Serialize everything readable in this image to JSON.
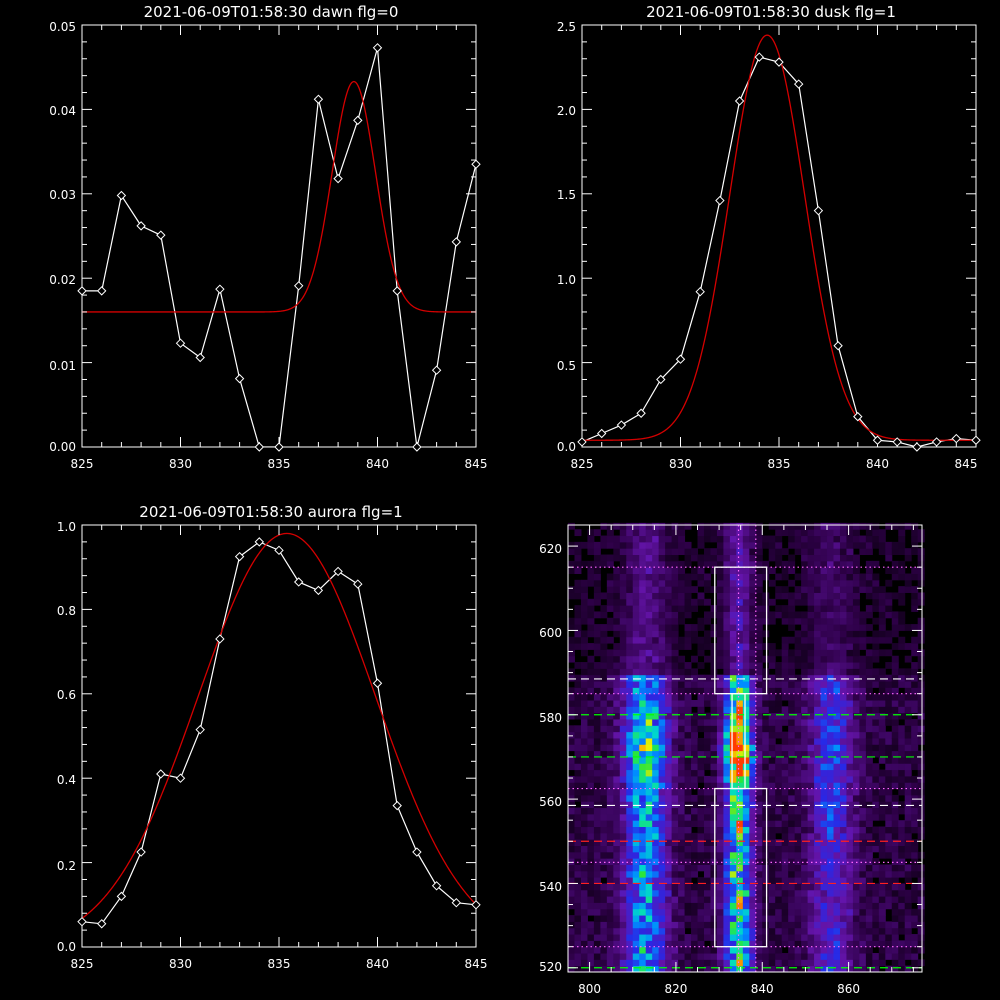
{
  "chart_data": [
    {
      "type": "line",
      "title": "2021-06-09T01:58:30 dawn flg=0",
      "xlim": [
        825,
        845
      ],
      "ylim": [
        0,
        0.05
      ],
      "x_ticks": [
        "825",
        "830",
        "835",
        "840",
        "845"
      ],
      "y_ticks": [
        "0.00",
        "0.01",
        "0.02",
        "0.03",
        "0.04",
        "0.05"
      ],
      "series": [
        {
          "style": "data",
          "color": "#ffffff",
          "x": [
            825,
            826,
            827,
            828,
            829,
            830,
            831,
            832,
            833,
            834,
            835,
            836,
            837,
            838,
            839,
            840,
            841,
            842,
            843,
            844,
            845
          ],
          "y": [
            0.0185,
            0.0185,
            0.0298,
            0.0262,
            0.0251,
            0.0123,
            0.0106,
            0.0187,
            0.0081,
            0.0,
            0.0,
            0.0191,
            0.0412,
            0.0318,
            0.0387,
            0.0473,
            0.0185,
            0.0,
            0.0091,
            0.0243,
            0.0335
          ]
        },
        {
          "style": "fit",
          "color": "#d40000",
          "model": "gaussian",
          "baseline": 0.016,
          "amplitude": 0.0273,
          "center": 838.8,
          "sigma": 1.1
        }
      ]
    },
    {
      "type": "line",
      "title": "2021-06-09T01:58:30 dusk flg=1",
      "xlim": [
        825,
        845
      ],
      "ylim": [
        0,
        2.5
      ],
      "x_ticks": [
        "825",
        "830",
        "835",
        "840",
        "845"
      ],
      "y_ticks": [
        "0.0",
        "0.5",
        "1.0",
        "1.5",
        "2.0",
        "2.5"
      ],
      "series": [
        {
          "style": "data",
          "color": "#ffffff",
          "x": [
            825,
            826,
            827,
            828,
            829,
            830,
            831,
            832,
            833,
            834,
            835,
            836,
            837,
            838,
            839,
            840,
            841,
            842,
            843,
            844,
            845
          ],
          "y": [
            0.03,
            0.08,
            0.13,
            0.2,
            0.4,
            0.52,
            0.92,
            1.46,
            2.05,
            2.31,
            2.28,
            2.15,
            1.4,
            0.6,
            0.18,
            0.04,
            0.03,
            0.0,
            0.03,
            0.05,
            0.04
          ]
        },
        {
          "style": "fit",
          "color": "#d40000",
          "model": "gaussian",
          "baseline": 0.04,
          "amplitude": 2.4,
          "center": 834.4,
          "sigma": 1.9
        }
      ]
    },
    {
      "type": "line",
      "title": "2021-06-09T01:58:30 aurora flg=1",
      "xlim": [
        825,
        845
      ],
      "ylim": [
        0,
        1.0
      ],
      "x_ticks": [
        "825",
        "830",
        "835",
        "840",
        "845"
      ],
      "y_ticks": [
        "0.0",
        "0.2",
        "0.4",
        "0.6",
        "0.8",
        "1.0"
      ],
      "series": [
        {
          "style": "data",
          "color": "#ffffff",
          "x": [
            825,
            826,
            827,
            828,
            829,
            830,
            831,
            832,
            833,
            834,
            835,
            836,
            837,
            838,
            839,
            840,
            841,
            842,
            843,
            844,
            845
          ],
          "y": [
            0.06,
            0.055,
            0.12,
            0.225,
            0.41,
            0.4,
            0.515,
            0.73,
            0.925,
            0.96,
            0.94,
            0.865,
            0.845,
            0.89,
            0.86,
            0.625,
            0.335,
            0.225,
            0.145,
            0.105,
            0.1
          ]
        },
        {
          "style": "fit",
          "color": "#d40000",
          "model": "gaussian",
          "baseline": 0.0,
          "amplitude": 0.98,
          "center": 835.4,
          "sigma": 4.5
        }
      ]
    },
    {
      "type": "heatmap",
      "title": "",
      "xlim": [
        795,
        877
      ],
      "ylim": [
        519,
        625
      ],
      "x_ticks": [
        "800",
        "820",
        "840",
        "860"
      ],
      "y_ticks": [
        "520",
        "540",
        "560",
        "580",
        "600",
        "620"
      ],
      "emission_columns": [
        {
          "x": 813,
          "width": 3.5,
          "strength": 0.55,
          "peak_y": 572,
          "peak_spread": 9,
          "extra": 0.45
        },
        {
          "x": 834.5,
          "width": 2.2,
          "strength": 0.75,
          "peak_y": 571,
          "peak_spread": 5,
          "extra": 1.0
        },
        {
          "x": 856,
          "width": 3.5,
          "strength": 0.32,
          "peak_y": 570,
          "peak_spread": 10,
          "extra": 0.2
        }
      ],
      "vertical_guides": [
        {
          "x": 834.5,
          "color": "#ff66ff",
          "dash": "dotted"
        },
        {
          "x": 838.5,
          "color": "#ff66ff",
          "dash": "dotted"
        }
      ],
      "horizontal_guides": [
        {
          "y": 615,
          "color": "#ff66ff",
          "dash": "dotted"
        },
        {
          "y": 588.5,
          "color": "#ffffff",
          "dash": "dashed"
        },
        {
          "y": 585,
          "color": "#ff66ff",
          "dash": "dotted"
        },
        {
          "y": 580,
          "color": "#00ff00",
          "dash": "dashed"
        },
        {
          "y": 570,
          "color": "#00ff00",
          "dash": "dashed"
        },
        {
          "y": 562.5,
          "color": "#ff66ff",
          "dash": "dotted"
        },
        {
          "y": 558.5,
          "color": "#ffffff",
          "dash": "dashed"
        },
        {
          "y": 550,
          "color": "#ff2020",
          "dash": "dashed"
        },
        {
          "y": 545,
          "color": "#ff66ff",
          "dash": "dotted"
        },
        {
          "y": 540,
          "color": "#ff2020",
          "dash": "dashed"
        },
        {
          "y": 525,
          "color": "#ff66ff",
          "dash": "dotted"
        },
        {
          "y": 520,
          "color": "#00ff00",
          "dash": "dashed"
        }
      ],
      "boxes": [
        {
          "x0": 829,
          "x1": 841,
          "y0": 585,
          "y1": 615
        },
        {
          "x0": 829,
          "x1": 841,
          "y0": 525,
          "y1": 562.5
        },
        {
          "x0": 833,
          "x1": 836,
          "y0": 562.5,
          "y1": 585
        }
      ]
    }
  ]
}
